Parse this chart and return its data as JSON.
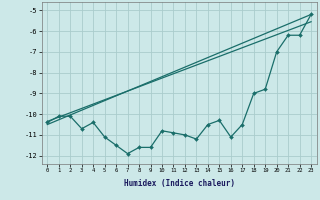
{
  "xlabel": "Humidex (Indice chaleur)",
  "background_color": "#cce8e8",
  "grid_color": "#aacccc",
  "line_color": "#1a6e6a",
  "x_data": [
    0,
    1,
    2,
    3,
    4,
    5,
    6,
    7,
    8,
    9,
    10,
    11,
    12,
    13,
    14,
    15,
    16,
    17,
    18,
    19,
    20,
    21,
    22,
    23
  ],
  "line1": [
    -10.4,
    -10.1,
    -10.1,
    -10.7,
    -10.4,
    -11.1,
    -11.5,
    -11.9,
    -11.6,
    -11.6,
    -10.8,
    -10.9,
    -11.0,
    -11.2,
    -10.5,
    -10.3,
    -11.1,
    -10.5,
    -9.0,
    -8.8,
    -7.0,
    -6.2,
    -6.2,
    -5.2
  ],
  "line2_x": [
    0,
    23
  ],
  "line2_y": [
    -10.5,
    -5.2
  ],
  "line3_x": [
    0,
    23
  ],
  "line3_y": [
    -10.35,
    -5.55
  ],
  "ylim": [
    -12.4,
    -4.6
  ],
  "xlim": [
    -0.5,
    23.5
  ],
  "yticks": [
    -12,
    -11,
    -10,
    -9,
    -8,
    -7,
    -6,
    -5
  ],
  "xticks": [
    0,
    1,
    2,
    3,
    4,
    5,
    6,
    7,
    8,
    9,
    10,
    11,
    12,
    13,
    14,
    15,
    16,
    17,
    18,
    19,
    20,
    21,
    22,
    23
  ]
}
